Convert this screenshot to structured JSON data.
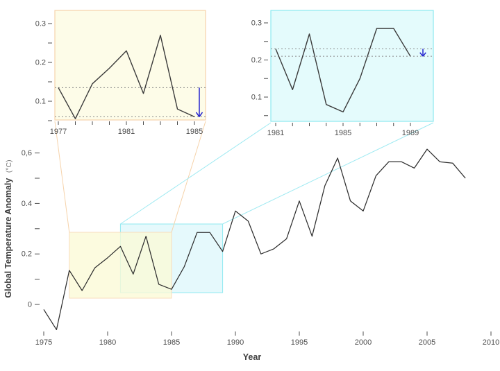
{
  "figure": {
    "xlabel": "Year",
    "ylabel": "Global Temperature Anomaly",
    "ylabel_unit": "(°C)"
  },
  "colors": {
    "line": "#2e2e2e",
    "inset_line": "#3a3a3a",
    "tick_text": "#4d4d4d",
    "dotted_line": "#8a8a8a",
    "arrow_blue": "#2323cf",
    "inset1_fill": "#fdfce8",
    "inset1_border": "#f6d3ab",
    "inset2_fill": "#e4fbfc",
    "inset2_border": "#8ce9f0",
    "window1_fill": "rgba(251,250,214,0.78)",
    "window1_border": "#f8dcbc",
    "window2_fill": "rgba(208,244,249,0.55)",
    "window2_border": "#90e9f0",
    "connector1": "#f6d3ab",
    "connector2": "#9feaf2"
  },
  "chart_data": [
    {
      "id": "main",
      "type": "line",
      "title": "",
      "xlabel": "Year",
      "ylabel": "Global Temperature Anomaly (°C)",
      "x": [
        1975,
        1976,
        1977,
        1978,
        1979,
        1980,
        1981,
        1982,
        1983,
        1984,
        1985,
        1986,
        1987,
        1988,
        1989,
        1990,
        1991,
        1992,
        1993,
        1994,
        1995,
        1996,
        1997,
        1998,
        1999,
        2000,
        2001,
        2002,
        2003,
        2004,
        2005,
        2006,
        2007,
        2008
      ],
      "y": [
        -0.02,
        -0.1,
        0.135,
        0.055,
        0.145,
        0.185,
        0.23,
        0.12,
        0.27,
        0.08,
        0.06,
        0.15,
        0.285,
        0.285,
        0.21,
        0.37,
        0.33,
        0.2,
        0.22,
        0.26,
        0.41,
        0.27,
        0.47,
        0.58,
        0.41,
        0.37,
        0.51,
        0.565,
        0.565,
        0.54,
        0.615,
        0.565,
        0.56,
        0.5
      ],
      "xlim": [
        1975,
        2010
      ],
      "ylim": [
        -0.12,
        0.65
      ],
      "grid": false,
      "legend": "none",
      "x_tick_labels": [
        {
          "v": 1975,
          "label": "1975"
        },
        {
          "v": 1980,
          "label": "1980"
        },
        {
          "v": 1985,
          "label": "1985"
        },
        {
          "v": 1990,
          "label": "1990"
        },
        {
          "v": 1995,
          "label": "1995"
        },
        {
          "v": 2000,
          "label": "2000"
        },
        {
          "v": 2005,
          "label": "2005"
        },
        {
          "v": 2010,
          "label": "2010"
        }
      ],
      "y_tick_labels": [
        {
          "v": 0,
          "label": "0"
        },
        {
          "v": 0.2,
          "label": "0.2"
        },
        {
          "v": 0.4,
          "label": "0.4"
        },
        {
          "v": 0.6,
          "label": "0,6"
        }
      ],
      "y_ticks_minor": [
        0.1,
        0.3,
        0.5
      ]
    },
    {
      "id": "inset-1977-1985",
      "type": "line",
      "title": "",
      "x": [
        1977,
        1978,
        1979,
        1980,
        1981,
        1982,
        1983,
        1984,
        1985
      ],
      "y": [
        0.135,
        0.055,
        0.145,
        0.185,
        0.23,
        0.12,
        0.27,
        0.08,
        0.06
      ],
      "xlim": [
        1976.8,
        1985.65
      ],
      "ylim": [
        0.045,
        0.335
      ],
      "grid": false,
      "highlight_window_years": [
        1977,
        1985
      ],
      "x_tick_labels": [
        {
          "v": 1977,
          "label": "1977"
        },
        {
          "v": 1981,
          "label": "1981"
        },
        {
          "v": 1985,
          "label": "1985"
        }
      ],
      "y_tick_labels": [
        {
          "v": 0.1,
          "label": "0.1"
        },
        {
          "v": 0.2,
          "label": "0.2"
        },
        {
          "v": 0.3,
          "label": "0.3"
        }
      ],
      "y_ticks_minor": [
        0.05,
        0.15,
        0.25
      ],
      "dotted_lines": [
        0.135,
        0.06
      ],
      "arrow": {
        "from": 0.135,
        "to": 0.06,
        "direction": "down"
      }
    },
    {
      "id": "inset-1981-1989",
      "type": "line",
      "title": "",
      "x": [
        1981,
        1982,
        1983,
        1984,
        1985,
        1986,
        1987,
        1988,
        1989
      ],
      "y": [
        0.23,
        0.12,
        0.27,
        0.08,
        0.06,
        0.15,
        0.285,
        0.285,
        0.21
      ],
      "xlim": [
        1980.7,
        1990.4
      ],
      "ylim": [
        0.035,
        0.335
      ],
      "grid": false,
      "highlight_window_years": [
        1981,
        1989
      ],
      "x_tick_labels": [
        {
          "v": 1981,
          "label": "1981"
        },
        {
          "v": 1985,
          "label": "1985"
        },
        {
          "v": 1989,
          "label": "1989"
        }
      ],
      "y_tick_labels": [
        {
          "v": 0.1,
          "label": "0.1"
        },
        {
          "v": 0.2,
          "label": "0.2"
        },
        {
          "v": 0.3,
          "label": "0.3"
        }
      ],
      "y_ticks_minor": [
        0.05,
        0.15,
        0.25
      ],
      "dotted_lines": [
        0.23,
        0.21
      ],
      "arrow": {
        "from": 0.23,
        "to": 0.21,
        "direction": "down"
      }
    }
  ]
}
